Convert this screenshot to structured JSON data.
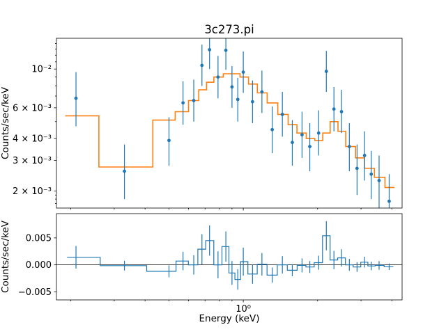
{
  "window": {
    "background": "#ffffff"
  },
  "chart_data": {
    "type": "line",
    "title": "3c273.pi",
    "xlabel": "Energy (keV)",
    "xscale": "log",
    "xlim": [
      0.175,
      4.4
    ],
    "xticks": [
      {
        "value": 1,
        "label": "10⁰"
      }
    ],
    "xticks_minor": [
      0.2,
      0.3,
      0.4,
      0.5,
      0.6,
      0.7,
      0.8,
      0.9,
      2,
      3,
      4
    ],
    "top_panel": {
      "ylabel": "Counts/sec/keV",
      "yscale": "log",
      "ylim": [
        0.0016,
        0.015
      ],
      "yticks": [
        {
          "value": 0.01,
          "label": "10⁻²"
        },
        {
          "value": 0.006,
          "label": "6 × 10⁻³"
        },
        {
          "value": 0.004,
          "label": "4 × 10⁻³"
        },
        {
          "value": 0.003,
          "label": "3 × 10⁻³"
        },
        {
          "value": 0.002,
          "label": "2 × 10⁻³"
        }
      ],
      "yticks_minor": [
        0.0017,
        0.0018,
        0.0019,
        0.005,
        0.007,
        0.008,
        0.009,
        0.011,
        0.012,
        0.013,
        0.014
      ],
      "model": {
        "name": "folded-model",
        "color": "#ff7f0e",
        "edges": [
          0.19,
          0.26,
          0.43,
          0.53,
          0.6,
          0.66,
          0.71,
          0.76,
          0.83,
          0.97,
          1.05,
          1.14,
          1.25,
          1.38,
          1.52,
          1.65,
          1.8,
          1.95,
          2.1,
          2.25,
          2.42,
          2.6,
          2.85,
          3.1,
          3.4,
          3.75,
          4.1
        ],
        "values": [
          0.0054,
          0.00275,
          0.0051,
          0.0057,
          0.0066,
          0.0076,
          0.0084,
          0.009,
          0.0094,
          0.009,
          0.0082,
          0.0073,
          0.0064,
          0.0055,
          0.0048,
          0.0043,
          0.004,
          0.0039,
          0.0043,
          0.005,
          0.0044,
          0.0036,
          0.0031,
          0.0027,
          0.0024,
          0.0021
        ]
      },
      "data": {
        "name": "spectrum-data",
        "color": "#1f77b4",
        "x": [
          0.21,
          0.33,
          0.5,
          0.57,
          0.63,
          0.68,
          0.73,
          0.79,
          0.85,
          0.9,
          0.95,
          1.0,
          1.09,
          1.19,
          1.31,
          1.44,
          1.58,
          1.73,
          1.86,
          2.02,
          2.17,
          2.33,
          2.5,
          2.69,
          2.89,
          3.1,
          3.3,
          3.55,
          3.9
        ],
        "y": [
          0.0068,
          0.0026,
          0.0039,
          0.0064,
          0.0066,
          0.0105,
          0.0129,
          0.009,
          0.0128,
          0.0079,
          0.0067,
          0.0096,
          0.0065,
          0.0074,
          0.0045,
          0.0055,
          0.0038,
          0.0042,
          0.0036,
          0.0043,
          0.0097,
          0.0059,
          0.0057,
          0.0036,
          0.0027,
          0.0032,
          0.0025,
          0.0023,
          0.00175
        ],
        "ylo": [
          0.0047,
          0.0018,
          0.0028,
          0.0048,
          0.005,
          0.008,
          0.01,
          0.0068,
          0.0099,
          0.006,
          0.005,
          0.0073,
          0.0049,
          0.0056,
          0.0033,
          0.0041,
          0.0028,
          0.0031,
          0.0026,
          0.0032,
          0.0074,
          0.0044,
          0.0043,
          0.0026,
          0.0019,
          0.0023,
          0.0018,
          0.0016,
          0.0012
        ],
        "yhi": [
          0.0096,
          0.0037,
          0.0053,
          0.0085,
          0.0087,
          0.0138,
          0.0156,
          0.0119,
          0.0155,
          0.0104,
          0.0089,
          0.0126,
          0.0086,
          0.0098,
          0.0061,
          0.0074,
          0.0051,
          0.0057,
          0.0049,
          0.0058,
          0.0127,
          0.0079,
          0.0076,
          0.0049,
          0.0037,
          0.0044,
          0.0034,
          0.0032,
          0.0025
        ]
      }
    },
    "bottom_panel": {
      "ylabel": "Counts/sec/keV",
      "yscale": "linear",
      "ylim": [
        -0.0065,
        0.0095
      ],
      "yticks": [
        {
          "value": -0.005,
          "label": "−0.005"
        },
        {
          "value": 0,
          "label": "0.000"
        },
        {
          "value": 0.005,
          "label": "0.005"
        }
      ],
      "zero_line": true,
      "residuals": {
        "name": "residuals",
        "color": "#1f77b4",
        "x": [
          0.21,
          0.33,
          0.5,
          0.57,
          0.63,
          0.68,
          0.73,
          0.79,
          0.85,
          0.9,
          0.95,
          1.0,
          1.09,
          1.19,
          1.31,
          1.44,
          1.58,
          1.73,
          1.86,
          2.02,
          2.17,
          2.33,
          2.5,
          2.69,
          2.89,
          3.1,
          3.3,
          3.55,
          3.9
        ],
        "y": [
          0.0014,
          -0.00015,
          -0.0012,
          0.0007,
          0.0,
          0.0029,
          0.0045,
          0.0,
          0.0034,
          -0.0015,
          -0.0027,
          0.0006,
          -0.0017,
          0.0001,
          -0.0019,
          0.0,
          -0.001,
          -0.0001,
          -0.0004,
          0.0004,
          0.0054,
          0.0009,
          0.0013,
          0.0,
          -0.0004,
          0.0005,
          -0.0002,
          -0.0001,
          -0.00035
        ],
        "err": [
          0.0021,
          0.0009,
          0.0011,
          0.0017,
          0.0018,
          0.0028,
          0.0028,
          0.0025,
          0.0028,
          0.0022,
          0.0019,
          0.0026,
          0.0018,
          0.0021,
          0.0014,
          0.0016,
          0.0011,
          0.0013,
          0.0011,
          0.0013,
          0.0027,
          0.0017,
          0.0016,
          0.0011,
          0.0009,
          0.001,
          0.0008,
          0.0008,
          0.0006
        ]
      }
    }
  }
}
